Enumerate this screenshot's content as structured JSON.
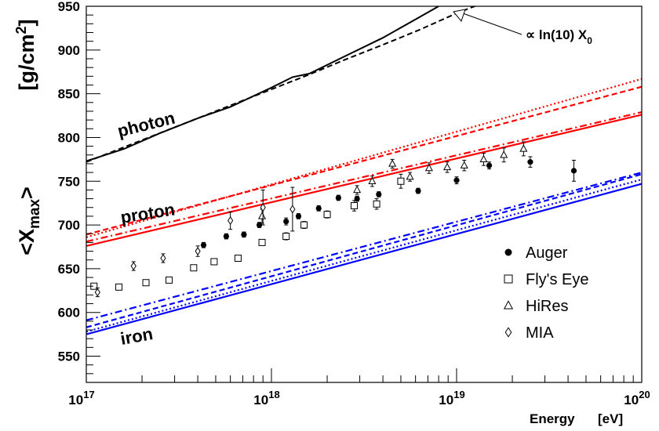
{
  "chart_data": {
    "type": "scatter",
    "x_scale": "log",
    "xlim": [
      1e+17,
      1e+20
    ],
    "ylim": [
      520,
      950
    ],
    "grid": false,
    "legend_position": "bottom-right",
    "xlabel": "Energy",
    "xunit": "[eV]",
    "ylabel_text": "<X",
    "ylabel_sub": "max",
    "ylabel_close": ">",
    "yunit": "[g/cm",
    "yunit_sup": "2",
    "yunit_close": "]",
    "x_ticks": [
      {
        "base": "10",
        "exp": "17",
        "value": 1e+17
      },
      {
        "base": "10",
        "exp": "18",
        "value": 1e+18
      },
      {
        "base": "10",
        "exp": "19",
        "value": 1e+19
      },
      {
        "base": "10",
        "exp": "20",
        "value": 1e+20
      }
    ],
    "y_ticks": [
      "550",
      "600",
      "650",
      "700",
      "750",
      "800",
      "850",
      "900",
      "950"
    ],
    "annotation": {
      "prefix": "∝ ln(10) X",
      "sub": "0"
    },
    "curve_labels": {
      "photon": "photon",
      "proton": "proton",
      "iron": "iron"
    },
    "colors": {
      "photon": "#000000",
      "proton": "#ff0000",
      "iron": "#0000ff",
      "axis": "#000000"
    },
    "model_lines": [
      {
        "group": "photon",
        "style": "solid",
        "x": [
          1e+17,
          1.6e+17,
          2.5e+17,
          4e+17,
          6e+17,
          1e+18,
          1.3e+18,
          1.6e+18,
          2.5e+18,
          4e+18,
          6e+18,
          8e+18
        ],
        "y": [
          773,
          787,
          805,
          822,
          835,
          857,
          869,
          873,
          893,
          914,
          935,
          950
        ]
      },
      {
        "group": "photon",
        "style": "dashed",
        "x": [
          1e+17,
          1e+18,
          1.6e+18,
          2.5e+18,
          4e+18,
          6.3e+18,
          1e+19,
          1.4e+19
        ],
        "y": [
          772,
          855,
          872,
          889,
          906,
          923,
          942,
          954
        ]
      },
      {
        "group": "proton",
        "style": "solid",
        "x": [
          1e+17,
          1e+20
        ],
        "y": [
          676,
          826
        ]
      },
      {
        "group": "proton",
        "style": "dashdot",
        "x": [
          1e+17,
          1e+20
        ],
        "y": [
          681,
          829
        ]
      },
      {
        "group": "proton",
        "style": "dashed",
        "x": [
          1e+17,
          1e+20
        ],
        "y": [
          689,
          858
        ]
      },
      {
        "group": "proton",
        "style": "dotted",
        "x": [
          1e+17,
          1e+20
        ],
        "y": [
          686,
          867
        ]
      },
      {
        "group": "iron",
        "style": "solid",
        "x": [
          1e+17,
          1e+20
        ],
        "y": [
          575,
          747
        ]
      },
      {
        "group": "iron",
        "style": "dotted",
        "x": [
          1e+17,
          1e+20
        ],
        "y": [
          578,
          752
        ]
      },
      {
        "group": "iron",
        "style": "dashed",
        "x": [
          1e+17,
          1e+20
        ],
        "y": [
          583,
          758
        ]
      },
      {
        "group": "iron",
        "style": "dashdot",
        "x": [
          1e+17,
          1e+20
        ],
        "y": [
          591,
          760
        ]
      }
    ],
    "series": [
      {
        "name": "Auger",
        "marker": "filled-circle",
        "x": [
          4.3e+17,
          5.7e+17,
          7.1e+17,
          8.6e+17,
          1.2e+18,
          1.4e+18,
          1.8e+18,
          2.3e+18,
          2.9e+18,
          3.8e+18,
          6.2e+18,
          1e+19,
          1.5e+19,
          2.5e+19,
          4.3e+19
        ],
        "y": [
          677,
          687,
          689,
          700,
          704,
          710,
          719,
          731,
          730,
          735,
          739,
          751,
          768,
          772,
          762
        ],
        "err": [
          3,
          3,
          3,
          3,
          4,
          3,
          3,
          3,
          3,
          3,
          3,
          4,
          4,
          6,
          12
        ]
      },
      {
        "name": "Fly's Eye",
        "marker": "open-square",
        "x": [
          1.1e+17,
          1.5e+17,
          2.1e+17,
          2.8e+17,
          3.8e+17,
          4.9e+17,
          6.6e+17,
          8.9e+17,
          1.2e+18,
          1.5e+18,
          2e+18,
          2.8e+18,
          3.7e+18,
          5e+18
        ],
        "y": [
          630,
          629,
          634,
          637,
          651,
          658,
          662,
          680,
          687,
          700,
          712,
          722,
          724,
          750
        ],
        "err": [
          3,
          3,
          3,
          3,
          3,
          3,
          3,
          3,
          4,
          4,
          4,
          6,
          6,
          8
        ]
      },
      {
        "name": "HiRes",
        "marker": "open-triangle",
        "x": [
          8.9e+17,
          2.9e+18,
          3.5e+18,
          4.5e+18,
          5.6e+18,
          7.1e+18,
          8.9e+18,
          1.1e+19,
          1.4e+19,
          1.8e+19,
          2.3e+19
        ],
        "y": [
          710,
          740,
          750,
          770,
          755,
          765,
          766,
          768,
          775,
          780,
          787
        ],
        "err": [
          8,
          5,
          6,
          5,
          5,
          6,
          6,
          6,
          7,
          8,
          8
        ]
      },
      {
        "name": "MIA",
        "marker": "open-diamond",
        "x": [
          1.15e+17,
          1.8e+17,
          2.6e+17,
          4e+17,
          6e+17,
          9e+17,
          1.3e+18
        ],
        "y": [
          623,
          653,
          662,
          670,
          705,
          720,
          718
        ],
        "err": [
          5,
          5,
          5,
          6,
          10,
          20,
          25
        ]
      }
    ]
  }
}
